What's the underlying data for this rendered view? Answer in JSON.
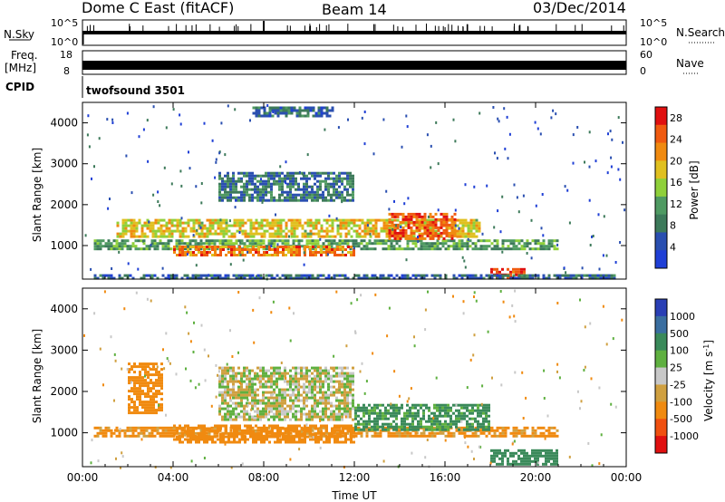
{
  "header": {
    "station": "Dome C East (fitACF)",
    "beam": "Beam 14",
    "date": "03/Dec/2014"
  },
  "nsky_panel": {
    "left_label": "N.Sky",
    "right_label": "N.Search",
    "left_ticks": [
      "10^5",
      "10^0"
    ],
    "right_ticks": [
      "10^5",
      "10^0"
    ]
  },
  "freq_panel": {
    "left_label_1": "Freq.",
    "left_label_2": "[MHz]",
    "right_label": "Nave",
    "left_ticks": [
      "18",
      "8"
    ],
    "right_ticks": [
      "60",
      "0"
    ]
  },
  "cpid_panel": {
    "label": "CPID",
    "program": "twofsound 3501"
  },
  "colors": {
    "power_scale": [
      "#1f3fd6",
      "#2a4fb0",
      "#3d7a5a",
      "#4f9a62",
      "#8fd03a",
      "#e0c020",
      "#f08a10",
      "#f05a10",
      "#e01010"
    ],
    "velocity_scale": [
      "#2a3fb5",
      "#3a6ea0",
      "#3a8a5a",
      "#5fb040",
      "#c8c8c8",
      "#d0a040",
      "#f08a10",
      "#f05010",
      "#e01010"
    ]
  },
  "chart_data": [
    {
      "type": "heatmap",
      "title": "",
      "xlabel": "",
      "ylabel": "Slant Range [km]",
      "xlim": [
        "00:00",
        "00:00"
      ],
      "x_ticks": [
        "00:00",
        "04:00",
        "08:00",
        "12:00",
        "16:00",
        "20:00",
        "00:00"
      ],
      "ylim": [
        180,
        4500
      ],
      "y_ticks": [
        1000,
        2000,
        3000,
        4000
      ],
      "colorbar": {
        "label": "Power [dB]",
        "ticks": [
          4,
          8,
          12,
          16,
          20,
          24,
          28
        ],
        "range": [
          0,
          30
        ]
      },
      "bands": [
        {
          "t0": 0.5,
          "t1": 21.0,
          "r0": 900,
          "r1": 1150,
          "level": 11
        },
        {
          "t0": 1.5,
          "t1": 17.5,
          "r0": 1250,
          "r1": 1650,
          "level": 18
        },
        {
          "t0": 4.0,
          "t1": 12.0,
          "r0": 800,
          "r1": 1000,
          "level": 24
        },
        {
          "t0": 13.5,
          "t1": 16.5,
          "r0": 1200,
          "r1": 1800,
          "level": 26
        },
        {
          "t0": 6.0,
          "t1": 12.0,
          "r0": 2100,
          "r1": 2800,
          "level": 7
        },
        {
          "t0": 18.0,
          "t1": 19.5,
          "r0": 250,
          "r1": 450,
          "level": 29
        },
        {
          "t0": 0.5,
          "t1": 23.5,
          "r0": 200,
          "r1": 300,
          "level": 5
        },
        {
          "t0": 7.5,
          "t1": 11.0,
          "r0": 4200,
          "r1": 4400,
          "level": 6
        }
      ]
    },
    {
      "type": "heatmap",
      "title": "",
      "xlabel": "Time UT",
      "ylabel": "Slant Range [km]",
      "xlim": [
        "00:00",
        "00:00"
      ],
      "x_ticks": [
        "00:00",
        "04:00",
        "08:00",
        "12:00",
        "16:00",
        "20:00",
        "00:00"
      ],
      "ylim": [
        180,
        4500
      ],
      "y_ticks": [
        1000,
        2000,
        3000,
        4000
      ],
      "colorbar": {
        "label": "Velocity [m s^-1]",
        "ticks": [
          1000,
          500,
          100,
          25,
          -25,
          -100,
          -500,
          -1000
        ]
      },
      "bands": [
        {
          "t0": 0.5,
          "t1": 21.0,
          "r0": 900,
          "r1": 1150,
          "velocity": -150
        },
        {
          "t0": 4.0,
          "t1": 12.0,
          "r0": 800,
          "r1": 1200,
          "velocity": -300
        },
        {
          "t0": 6.0,
          "t1": 12.0,
          "r0": 1300,
          "r1": 2600,
          "velocity": 0
        },
        {
          "t0": 12.0,
          "t1": 18.0,
          "r0": 1100,
          "r1": 1700,
          "velocity": 150
        },
        {
          "t0": 18.0,
          "t1": 21.0,
          "r0": 250,
          "r1": 600,
          "velocity": 300
        },
        {
          "t0": 2.0,
          "t1": 3.5,
          "r0": 1500,
          "r1": 2700,
          "velocity": -300
        }
      ]
    }
  ]
}
